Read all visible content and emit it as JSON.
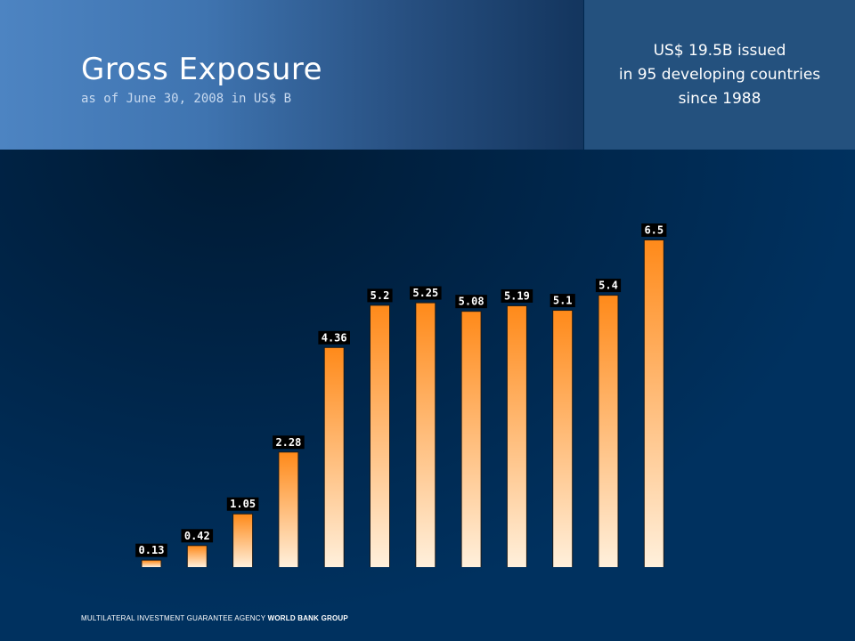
{
  "header": {
    "title": "Gross Exposure",
    "subtitle": "as of June 30, 2008 in US$ B"
  },
  "callout": {
    "line1": "US$ 19.5B issued",
    "line2": "in 95 developing countries",
    "line3": "since 1988"
  },
  "footer": {
    "agency": "MULTILATERAL INVESTMENT GUARANTEE AGENCY",
    "group": "WORLD BANK GROUP"
  },
  "colors": {
    "bar_top": "#ff8a1a",
    "bar_bottom": "#fff0dc",
    "label_bg": "#000000",
    "label_text": "#ffffff"
  },
  "chart_data": {
    "type": "bar",
    "title": "Gross Exposure",
    "values": [
      0.13,
      0.42,
      1.05,
      2.28,
      4.36,
      5.2,
      5.25,
      5.08,
      5.19,
      5.1,
      5.4,
      6.5
    ],
    "labels": [
      "0.13",
      "0.42",
      "1.05",
      "2.28",
      "4.36",
      "5.2",
      "5.25",
      "5.08",
      "5.19",
      "5.1",
      "5.4",
      "6.5"
    ],
    "ylim": [
      0,
      6.5
    ],
    "grid": false,
    "legend": "none"
  }
}
